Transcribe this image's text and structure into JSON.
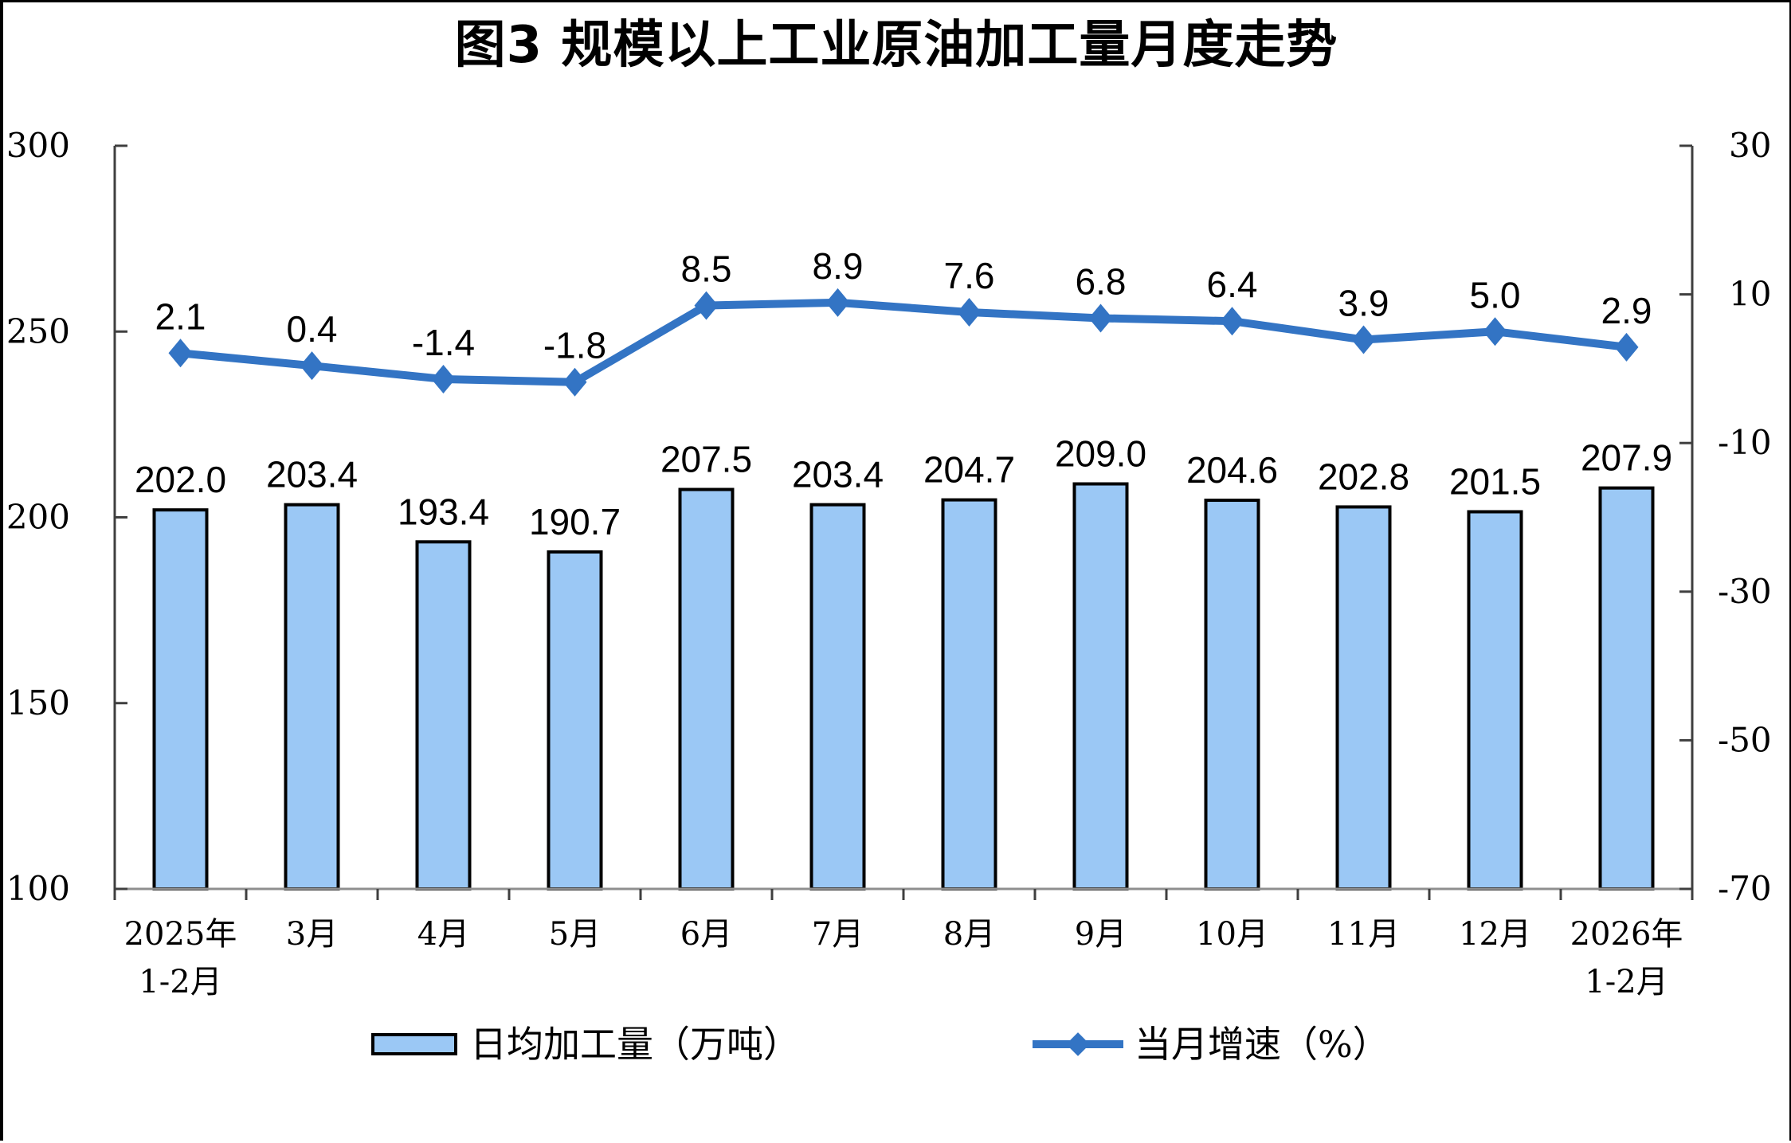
{
  "title": "图3 规模以上工业原油加工量月度走势",
  "chart_data": {
    "type": "bar",
    "subtype": "combo-bar-line-dual-axis",
    "title": "图3 规模以上工业原油加工量月度走势",
    "categories": [
      [
        "2025年",
        "1-2月"
      ],
      [
        "3月"
      ],
      [
        "4月"
      ],
      [
        "5月"
      ],
      [
        "6月"
      ],
      [
        "7月"
      ],
      [
        "8月"
      ],
      [
        "9月"
      ],
      [
        "10月"
      ],
      [
        "11月"
      ],
      [
        "12月"
      ],
      [
        "2026年",
        "1-2月"
      ]
    ],
    "series": [
      {
        "name": "日均加工量（万吨）",
        "type": "bar",
        "axis": "left",
        "values": [
          202.0,
          203.4,
          193.4,
          190.7,
          207.5,
          203.4,
          204.7,
          209.0,
          204.6,
          202.8,
          201.5,
          207.9
        ]
      },
      {
        "name": "当月增速（%）",
        "type": "line",
        "axis": "right",
        "values": [
          2.1,
          0.4,
          -1.4,
          -1.8,
          8.5,
          8.9,
          7.6,
          6.8,
          6.4,
          3.9,
          5.0,
          2.9
        ]
      }
    ],
    "left_axis": {
      "min": 100,
      "max": 300,
      "ticks": [
        100,
        150,
        200,
        250,
        300
      ]
    },
    "right_axis": {
      "min": -70,
      "max": 30,
      "ticks": [
        -70,
        -50,
        -30,
        -10,
        10,
        30
      ]
    },
    "grid": false,
    "legend_position": "bottom",
    "colors": {
      "bar_fill": "#9BC8F5",
      "bar_stroke": "#000000",
      "line": "#3374C4",
      "y_axis": "#3F3F3F",
      "x_baseline": "#8F8F8F",
      "text": "#000000"
    }
  },
  "legend": {
    "items": [
      {
        "label": "日均加工量（万吨）",
        "swatch": "bar-swatch"
      },
      {
        "label": "当月增速（%）",
        "swatch": "line-swatch"
      }
    ]
  }
}
